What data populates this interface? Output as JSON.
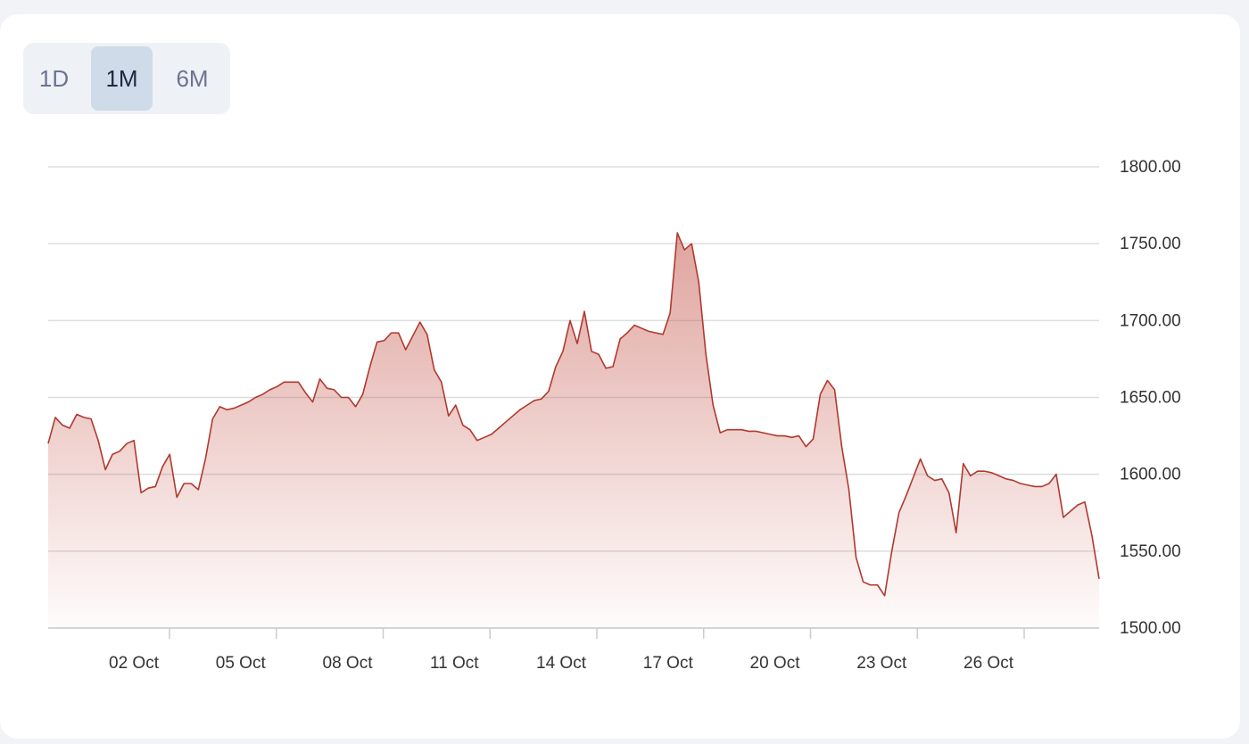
{
  "range_buttons": [
    "1D",
    "1M",
    "6M"
  ],
  "chart_data": {
    "type": "area",
    "color": "#b0392e",
    "grid": true,
    "ylim": [
      1500,
      1800
    ],
    "yticks": [
      {
        "value": 1500,
        "label": "1500.00"
      },
      {
        "value": 1550,
        "label": "1550.00"
      },
      {
        "value": 1600,
        "label": "1600.00"
      },
      {
        "value": 1650,
        "label": "1650.00"
      },
      {
        "value": 1700,
        "label": "1700.00"
      },
      {
        "value": 1750,
        "label": "1750.00"
      },
      {
        "value": 1800,
        "label": "1800.00"
      }
    ],
    "xticks": [
      "02 Oct",
      "05 Oct",
      "08 Oct",
      "11 Oct",
      "14 Oct",
      "17 Oct",
      "20 Oct",
      "23 Oct",
      "26 Oct"
    ],
    "values": [
      1620,
      1637,
      1632,
      1630,
      1639,
      1637,
      1636,
      1622,
      1603,
      1613,
      1615,
      1620,
      1622,
      1588,
      1591,
      1592,
      1605,
      1613,
      1585,
      1594,
      1594,
      1590,
      1610,
      1636,
      1644,
      1642,
      1643,
      1645,
      1647,
      1650,
      1652,
      1655,
      1657,
      1660,
      1660,
      1660,
      1653,
      1647,
      1662,
      1656,
      1655,
      1650,
      1650,
      1644,
      1652,
      1670,
      1686,
      1687,
      1692,
      1692,
      1681,
      1690,
      1699,
      1691,
      1668,
      1660,
      1638,
      1645,
      1632,
      1629,
      1622,
      1624,
      1626,
      1630,
      1634,
      1638,
      1642,
      1645,
      1648,
      1649,
      1654,
      1670,
      1680,
      1700,
      1685,
      1706,
      1680,
      1678,
      1669,
      1670,
      1688,
      1692,
      1697,
      1695,
      1693,
      1692,
      1691,
      1705,
      1757,
      1746,
      1750,
      1725,
      1678,
      1645,
      1627,
      1629,
      1629,
      1629,
      1628,
      1628,
      1627,
      1626,
      1625,
      1625,
      1624,
      1625,
      1618,
      1623,
      1652,
      1661,
      1655,
      1618,
      1590,
      1546,
      1530,
      1528,
      1528,
      1521,
      1550,
      1575,
      1586,
      1598,
      1610,
      1599,
      1596,
      1597,
      1588,
      1562,
      1607,
      1599,
      1602,
      1602,
      1601,
      1599,
      1597,
      1596,
      1594,
      1593,
      1592,
      1592,
      1594,
      1600,
      1572,
      1576,
      1580,
      1582,
      1560,
      1532
    ]
  }
}
